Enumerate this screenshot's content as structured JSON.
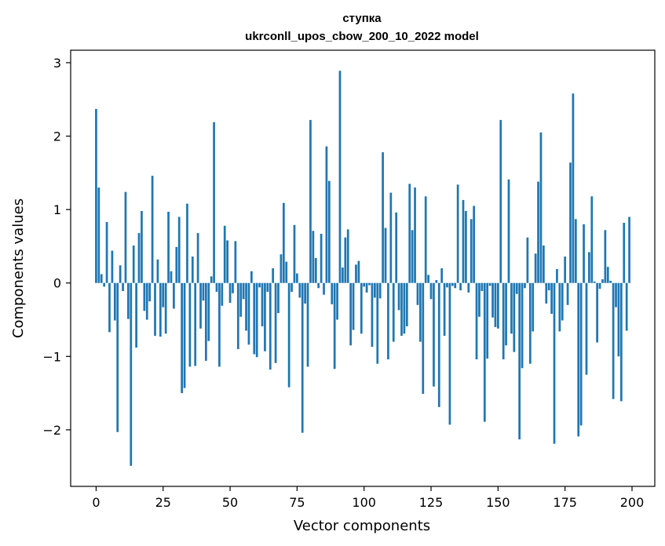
{
  "chart_data": {
    "type": "bar",
    "title_line1": "ступка",
    "title_line2": "ukrconll_upos_cbow_200_10_2022 model",
    "xlabel": "Vector components",
    "ylabel": "Components values",
    "xlim": [
      -9.5,
      208.5
    ],
    "ylim": [
      -2.77,
      3.17
    ],
    "xticks": [
      0,
      25,
      50,
      75,
      100,
      125,
      150,
      175,
      200
    ],
    "yticks": [
      3,
      2,
      1,
      0,
      -1,
      -2
    ],
    "ytick_labels": [
      "3",
      "2",
      "1",
      "0",
      "−1",
      "−2"
    ],
    "color": "#1f77b4",
    "grid": false,
    "values": [
      2.37,
      1.3,
      0.12,
      -0.05,
      0.83,
      -0.67,
      0.44,
      -0.51,
      -2.03,
      0.24,
      -0.11,
      1.24,
      -0.49,
      -2.49,
      0.51,
      -0.88,
      0.68,
      0.98,
      -0.38,
      -0.5,
      -0.25,
      1.46,
      -0.72,
      0.32,
      -0.73,
      -0.33,
      -0.69,
      0.97,
      0.16,
      -0.35,
      0.49,
      0.9,
      -1.5,
      -1.43,
      1.08,
      -1.14,
      0.36,
      -1.13,
      0.68,
      -0.62,
      -0.24,
      -1.06,
      -0.79,
      0.09,
      2.19,
      -0.12,
      -1.14,
      -0.31,
      0.78,
      0.58,
      -0.27,
      -0.14,
      0.57,
      -0.9,
      -0.46,
      -0.22,
      -0.65,
      -0.84,
      0.16,
      -0.97,
      -1.01,
      -0.06,
      -0.59,
      -0.93,
      -0.12,
      -1.18,
      0.2,
      -1.09,
      -0.41,
      0.39,
      1.09,
      0.29,
      -1.42,
      -0.12,
      0.79,
      0.13,
      -0.2,
      -2.04,
      -0.28,
      -1.14,
      2.22,
      0.71,
      0.34,
      -0.07,
      0.67,
      -0.16,
      1.86,
      1.39,
      -0.29,
      -1.17,
      -0.5,
      2.89,
      0.21,
      0.62,
      0.73,
      -0.85,
      -0.64,
      0.25,
      0.3,
      -0.69,
      -0.05,
      -0.13,
      -0.03,
      -0.87,
      -0.2,
      -1.1,
      -0.21,
      1.78,
      0.75,
      -1.04,
      1.23,
      -0.8,
      0.96,
      -0.37,
      -0.72,
      -0.69,
      -0.59,
      1.35,
      0.72,
      1.3,
      -0.3,
      -0.8,
      -1.51,
      1.18,
      0.11,
      -0.22,
      -1.41,
      0.04,
      -1.69,
      0.2,
      -0.72,
      -0.06,
      -1.93,
      -0.04,
      -0.07,
      1.34,
      -0.1,
      1.13,
      0.98,
      -0.13,
      0.87,
      1.05,
      -1.04,
      -0.46,
      -0.11,
      -1.89,
      -1.03,
      -0.04,
      -0.47,
      -0.6,
      -0.62,
      2.22,
      -1.04,
      -0.85,
      1.41,
      -0.69,
      -0.94,
      -0.15,
      -2.13,
      -1.16,
      -0.07,
      0.62,
      -1.1,
      -0.66,
      0.4,
      1.38,
      2.05,
      0.51,
      -0.28,
      -0.1,
      -0.42,
      -2.19,
      0.19,
      -0.66,
      -0.51,
      0.36,
      -0.3,
      1.64,
      2.58,
      0.87,
      -2.09,
      -1.94,
      0.8,
      -1.25,
      0.42,
      1.18,
      0.02,
      -0.81,
      -0.08,
      0.05,
      0.72,
      0.22,
      0.03,
      -1.58,
      -0.33,
      -1.0,
      -1.61,
      0.82,
      -0.65,
      0.9
    ]
  }
}
